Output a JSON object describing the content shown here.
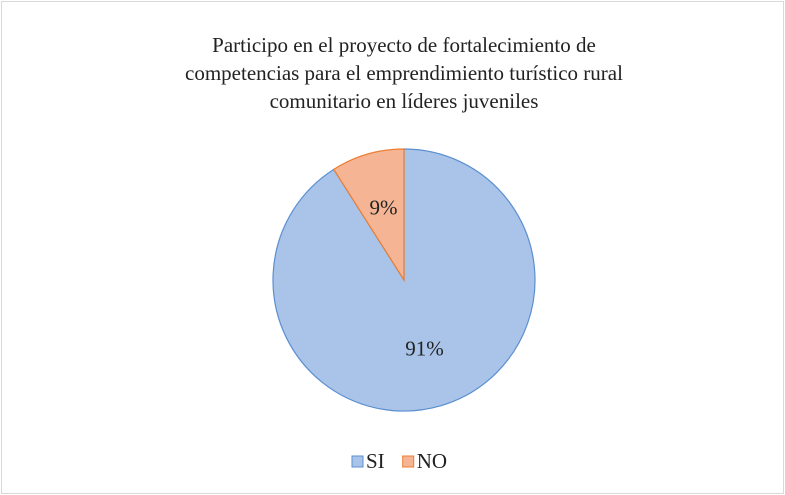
{
  "chart_data": {
    "type": "pie",
    "title": [
      "Participo en el proyecto de fortalecimiento de",
      "competencias para el emprendimiento turístico rural",
      "comunitario en líderes juveniles"
    ],
    "categories": [
      "SI",
      "NO"
    ],
    "values": [
      91,
      9
    ],
    "value_labels": [
      "91%",
      "9%"
    ],
    "colors": [
      "#a9c4e8",
      "#f5b594"
    ],
    "edge_colors": [
      "#5b8fd0",
      "#ed7d31"
    ],
    "legend": "bottom"
  }
}
